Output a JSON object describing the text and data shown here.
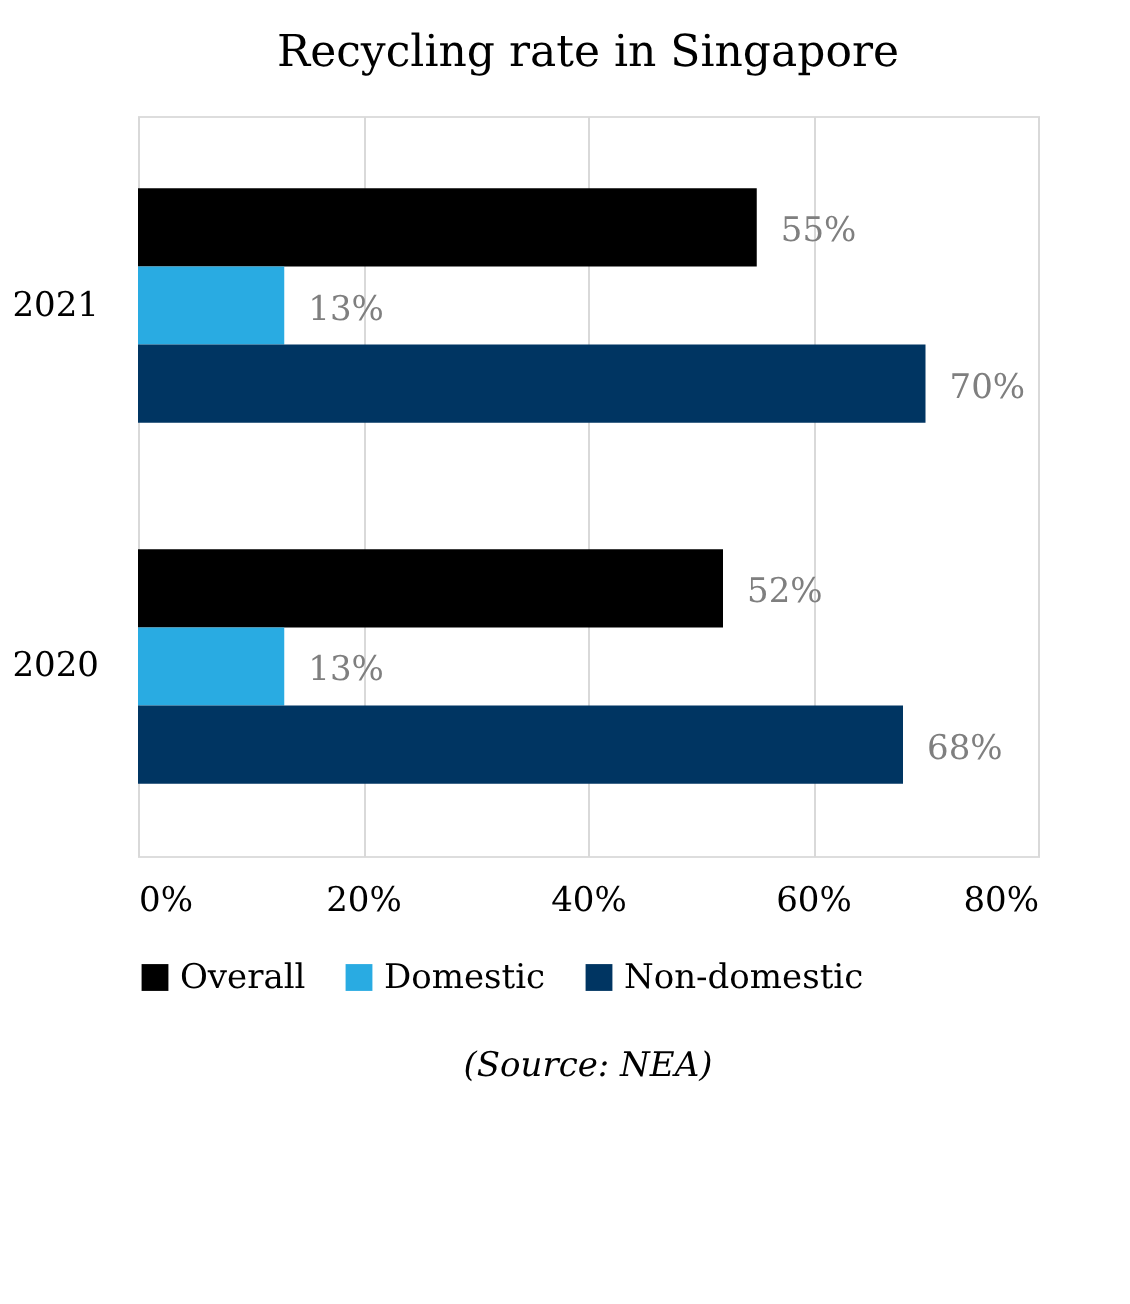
{
  "chart_data": {
    "type": "bar",
    "orientation": "horizontal",
    "title": "Recycling rate in Singapore",
    "categories": [
      "2021",
      "2020"
    ],
    "series": [
      {
        "name": "Overall",
        "color": "#000000",
        "values": [
          55,
          52
        ],
        "value_labels": [
          "55%",
          "52%"
        ]
      },
      {
        "name": "Domestic",
        "color": "#29abe2",
        "values": [
          13,
          13
        ],
        "value_labels": [
          "13%",
          "13%"
        ]
      },
      {
        "name": "Non-domestic",
        "color": "#003562",
        "values": [
          70,
          68
        ],
        "value_labels": [
          "70%",
          "68%"
        ]
      }
    ],
    "xlim": [
      0,
      80
    ],
    "xticks": [
      {
        "value": 0,
        "label": "0%"
      },
      {
        "value": 20,
        "label": "20%"
      },
      {
        "value": 40,
        "label": "40%"
      },
      {
        "value": 60,
        "label": "60%"
      },
      {
        "value": 80,
        "label": "80%"
      }
    ],
    "grid": "x",
    "legend": "bottom",
    "annotations": [
      "(Source: NEA)"
    ]
  }
}
